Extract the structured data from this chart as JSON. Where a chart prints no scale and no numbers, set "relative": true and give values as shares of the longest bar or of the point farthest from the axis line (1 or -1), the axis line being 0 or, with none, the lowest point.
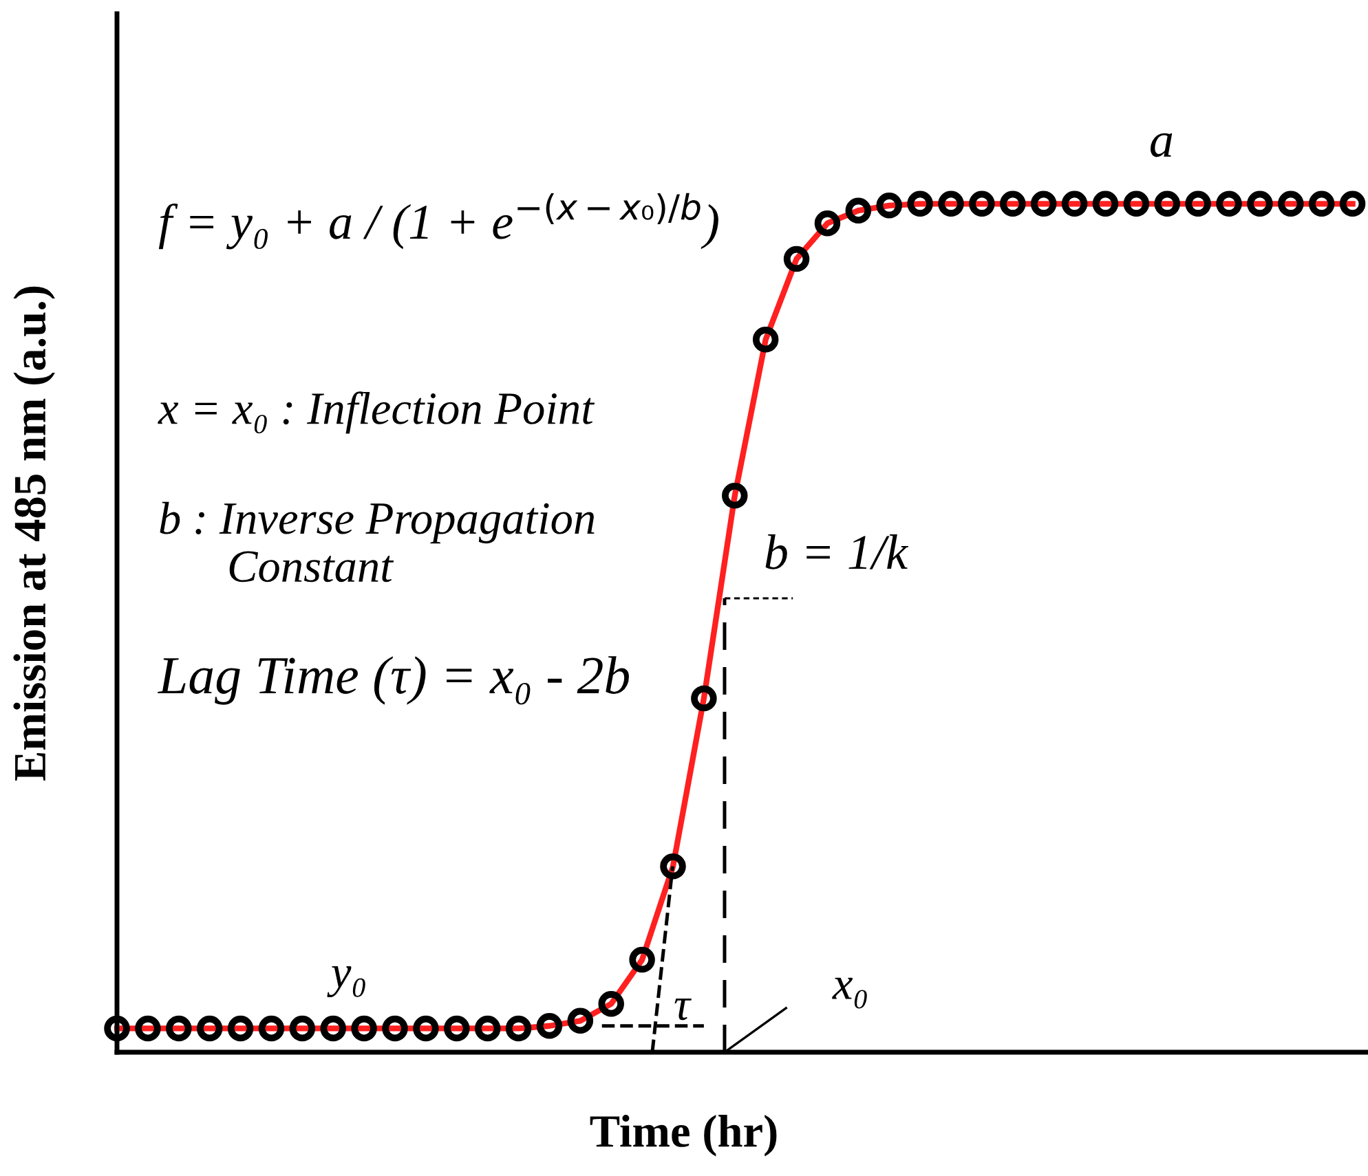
{
  "chart_data": {
    "type": "line",
    "relative": true,
    "xlabel": "Time (hr)",
    "ylabel": "Emission at 485 nm (a.u.)",
    "marker": "circle",
    "categories": [
      null,
      null,
      null,
      null,
      null,
      null,
      null,
      null,
      null,
      null,
      null,
      null,
      null,
      null,
      null,
      null,
      null,
      null,
      null,
      null,
      null,
      null,
      null,
      null,
      null,
      null,
      null,
      null,
      null,
      null,
      null,
      null,
      null,
      null,
      null,
      null,
      null,
      null,
      null,
      null,
      null
    ],
    "series": [
      {
        "color": "#ff2020",
        "values": [
          0.028,
          0.028,
          0.028,
          0.028,
          0.028,
          0.028,
          0.028,
          0.028,
          0.028,
          0.028,
          0.028,
          0.028,
          0.028,
          0.028,
          0.031,
          0.037,
          0.057,
          0.109,
          0.219,
          0.417,
          0.656,
          0.84,
          0.935,
          0.977,
          0.992,
          0.998,
          1,
          1,
          1,
          1,
          1,
          1,
          1,
          1,
          1,
          1,
          1,
          1,
          1,
          1,
          1
        ]
      }
    ],
    "annotations": [
      "f = y₀ + a / (1 + e$^{−(x−x₀)/b}$)",
      "a",
      "x = x₀ : Inflection Point",
      "b : Inverse Propagation\n      Constant",
      "Lag Time (τ) = x₀ - 2b",
      "b = 1/k",
      "y₀",
      "τ",
      "x₀"
    ]
  }
}
